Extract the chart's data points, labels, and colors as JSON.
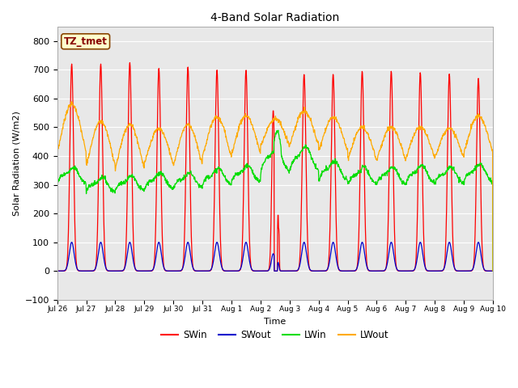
{
  "title": "4-Band Solar Radiation",
  "xlabel": "Time",
  "ylabel": "Solar Radiation (W/m2)",
  "ylim": [
    -100,
    850
  ],
  "yticks": [
    -100,
    0,
    100,
    200,
    300,
    400,
    500,
    600,
    700,
    800
  ],
  "fig_color": "#ffffff",
  "plot_bg": "#e8e8e8",
  "grid_color": "#ffffff",
  "colors": {
    "SWin": "#ff0000",
    "SWout": "#0000cc",
    "LWin": "#00dd00",
    "LWout": "#ffaa00"
  },
  "label_box": "TZ_tmet",
  "label_box_facecolor": "#ffffcc",
  "label_box_edgecolor": "#884400",
  "label_text_color": "#880000",
  "n_days": 15,
  "xtick_labels": [
    "Jul 26",
    "Jul 27",
    "Jul 28",
    "Jul 29",
    "Jul 30",
    "Jul 31",
    "Aug 1",
    "Aug 2",
    "Aug 3",
    "Aug 4",
    "Aug 5",
    "Aug 6",
    "Aug 7",
    "Aug 8",
    "Aug 9",
    "Aug 10"
  ],
  "legend_entries": [
    "SWin",
    "SWout",
    "LWin",
    "LWout"
  ]
}
